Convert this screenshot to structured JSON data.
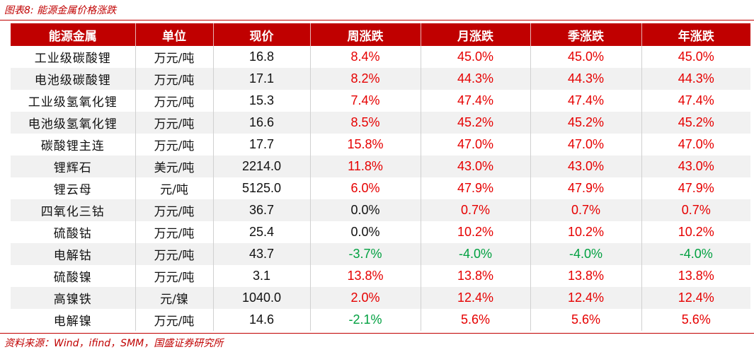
{
  "caption": "图表8:  能源金属价格涨跌",
  "source": "资料来源：Wind，ifind，SMM，国盛证券研究所",
  "colors": {
    "header_bg": "#c00000",
    "rise": "#e60000",
    "fall": "#00a040",
    "neutral": "#111111",
    "stripe": "#f1f1f1"
  },
  "headers": [
    "能源金属",
    "单位",
    "现价",
    "周涨跌",
    "月涨跌",
    "季涨跌",
    "年涨跌"
  ],
  "rows": [
    {
      "name": "工业级碳酸锂",
      "unit": "万元/吨",
      "price": "16.8",
      "week": "8.4%",
      "month": "45.0%",
      "quarter": "45.0%",
      "year": "45.0%"
    },
    {
      "name": "电池级碳酸锂",
      "unit": "万元/吨",
      "price": "17.1",
      "week": "8.2%",
      "month": "44.3%",
      "quarter": "44.3%",
      "year": "44.3%"
    },
    {
      "name": "工业级氢氧化锂",
      "unit": "万元/吨",
      "price": "15.3",
      "week": "7.4%",
      "month": "47.4%",
      "quarter": "47.4%",
      "year": "47.4%"
    },
    {
      "name": "电池级氢氧化锂",
      "unit": "万元/吨",
      "price": "16.6",
      "week": "8.5%",
      "month": "45.2%",
      "quarter": "45.2%",
      "year": "45.2%"
    },
    {
      "name": "碳酸锂主连",
      "unit": "万元/吨",
      "price": "17.7",
      "week": "15.8%",
      "month": "47.0%",
      "quarter": "47.0%",
      "year": "47.0%"
    },
    {
      "name": "锂辉石",
      "unit": "美元/吨",
      "price": "2214.0",
      "week": "11.8%",
      "month": "43.0%",
      "quarter": "43.0%",
      "year": "43.0%"
    },
    {
      "name": "锂云母",
      "unit": "元/吨",
      "price": "5125.0",
      "week": "6.0%",
      "month": "47.9%",
      "quarter": "47.9%",
      "year": "47.9%"
    },
    {
      "name": "四氧化三钴",
      "unit": "万元/吨",
      "price": "36.7",
      "week": "0.0%",
      "month": "0.7%",
      "quarter": "0.7%",
      "year": "0.7%"
    },
    {
      "name": "硫酸钴",
      "unit": "万元/吨",
      "price": "25.4",
      "week": "0.0%",
      "month": "10.2%",
      "quarter": "10.2%",
      "year": "10.2%"
    },
    {
      "name": "电解钴",
      "unit": "万元/吨",
      "price": "43.7",
      "week": "-3.7%",
      "month": "-4.0%",
      "quarter": "-4.0%",
      "year": "-4.0%"
    },
    {
      "name": "硫酸镍",
      "unit": "万元/吨",
      "price": "3.1",
      "week": "13.8%",
      "month": "13.8%",
      "quarter": "13.8%",
      "year": "13.8%"
    },
    {
      "name": "高镍铁",
      "unit": "元/镍",
      "price": "1040.0",
      "week": "2.0%",
      "month": "12.4%",
      "quarter": "12.4%",
      "year": "12.4%"
    },
    {
      "name": "电解镍",
      "unit": "万元/吨",
      "price": "14.6",
      "week": "-2.1%",
      "month": "5.6%",
      "quarter": "5.6%",
      "year": "5.6%"
    }
  ]
}
